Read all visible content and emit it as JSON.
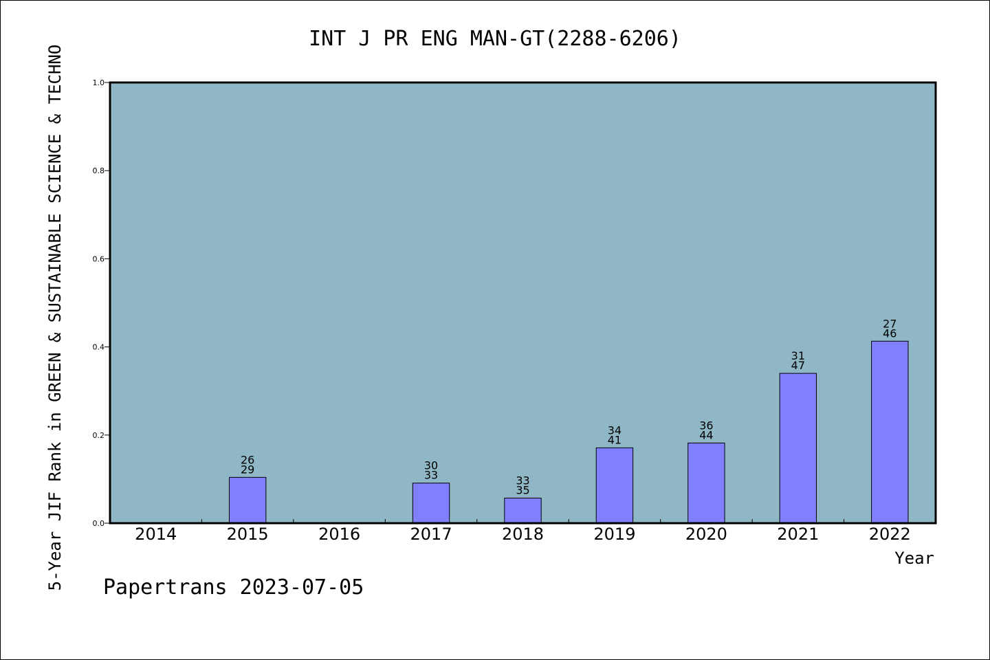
{
  "chart_data": {
    "type": "bar",
    "title": "INT J PR ENG MAN-GT(2288-6206)",
    "xlabel": "Year",
    "ylabel": "5-Year JIF Rank in GREEN & SUSTAINABLE SCIENCE & TECHNO",
    "footer": "Papertrans 2023-07-05",
    "categories": [
      "2014",
      "2015",
      "2016",
      "2017",
      "2018",
      "2019",
      "2020",
      "2021",
      "2022"
    ],
    "values": [
      null,
      0.104,
      null,
      0.091,
      0.057,
      0.171,
      0.182,
      0.34,
      0.413
    ],
    "rank_labels": [
      null,
      {
        "rank": "26",
        "total": "29"
      },
      null,
      {
        "rank": "30",
        "total": "33"
      },
      {
        "rank": "33",
        "total": "35"
      },
      {
        "rank": "34",
        "total": "41"
      },
      {
        "rank": "36",
        "total": "44"
      },
      {
        "rank": "31",
        "total": "47"
      },
      {
        "rank": "27",
        "total": "46"
      }
    ],
    "ylim": [
      0,
      1.0
    ],
    "yticks": [
      "0.0",
      "0.2",
      "0.4",
      "0.6",
      "0.8",
      "1.0"
    ],
    "grid": false,
    "colors": {
      "plot_background": "#8fb7c5",
      "bar_fill": "#8080ff",
      "bar_stroke": "#000000"
    }
  }
}
